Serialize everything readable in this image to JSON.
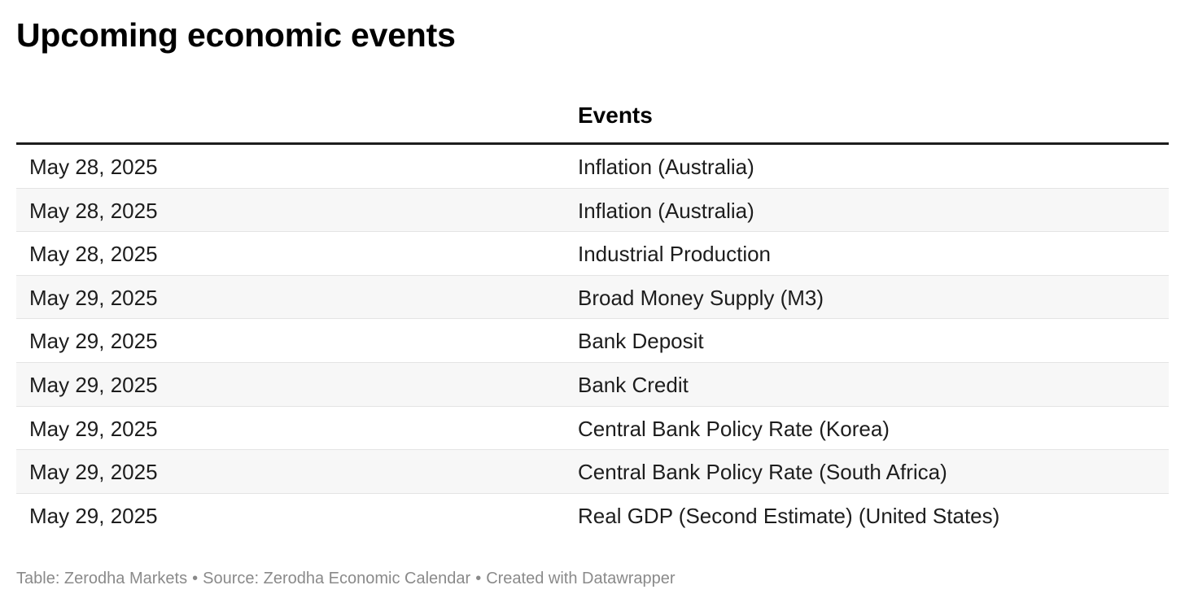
{
  "chart_data": {
    "type": "table",
    "title": "Upcoming economic events",
    "columns": [
      "",
      "Events"
    ],
    "rows": [
      {
        "date": "May 28, 2025",
        "event": "Inflation (Australia)"
      },
      {
        "date": "May 28, 2025",
        "event": "Inflation (Australia)"
      },
      {
        "date": "May 28, 2025",
        "event": "Industrial Production"
      },
      {
        "date": "May 29, 2025",
        "event": "Broad Money Supply (M3)"
      },
      {
        "date": "May 29, 2025",
        "event": "Bank Deposit"
      },
      {
        "date": "May 29, 2025",
        "event": "Bank Credit"
      },
      {
        "date": "May 29, 2025",
        "event": "Central Bank Policy Rate (Korea)"
      },
      {
        "date": "May 29, 2025",
        "event": "Central Bank Policy Rate (South Africa)"
      },
      {
        "date": "May 29, 2025",
        "event": "Real GDP (Second Estimate) (United States)"
      }
    ]
  },
  "footer": {
    "table_credit": "Table: Zerodha Markets",
    "source": "Source: Zerodha Economic Calendar",
    "created_with": "Created with Datawrapper",
    "separator": "•"
  },
  "colors": {
    "alt_row": "#f7f7f7",
    "header_rule": "#1d1d1d",
    "row_rule": "#e4e4e4",
    "footer_text": "#8a8a8a"
  }
}
